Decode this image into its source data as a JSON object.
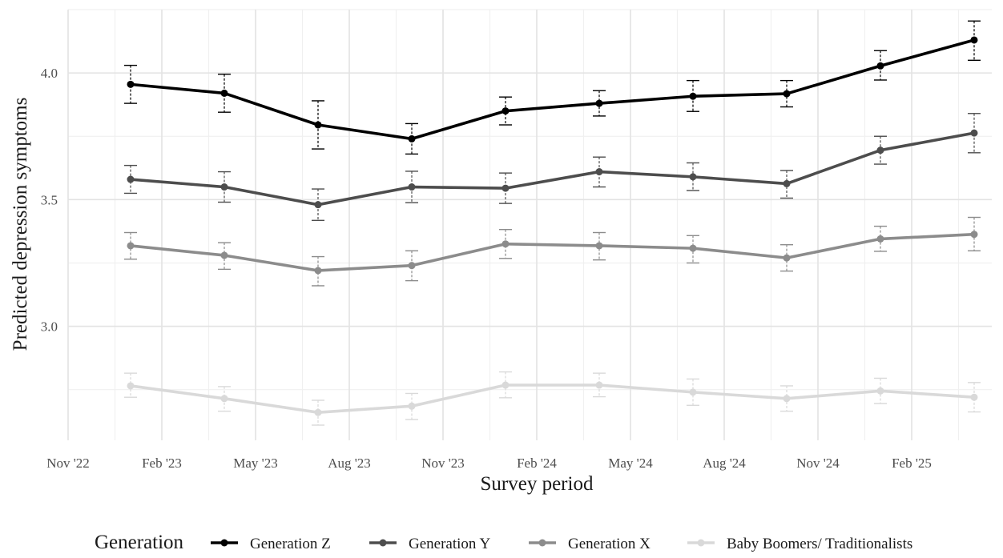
{
  "chart_data": {
    "type": "line",
    "title": "",
    "xlabel": "Survey period",
    "ylabel": "Predicted depression symptoms",
    "x": [
      "Jan '23",
      "Apr '23",
      "Jul '23",
      "Oct '23",
      "Jan '24",
      "Apr '24",
      "Jul '24",
      "Oct '24",
      "Jan '25",
      "Apr '25"
    ],
    "x_ticks": [
      "Nov '22",
      "Feb '23",
      "May '23",
      "Aug '23",
      "Nov '23",
      "Feb '24",
      "May '24",
      "Aug '24",
      "Nov '24",
      "Feb '25"
    ],
    "y_ticks": [
      "3.0",
      "3.5",
      "4.0"
    ],
    "ylim": [
      2.55,
      4.25
    ],
    "grid": true,
    "legend_position": "bottom",
    "legend_title": "Generation",
    "series": [
      {
        "name": "Generation Z",
        "color": "#000000",
        "values": [
          3.955,
          3.92,
          3.795,
          3.74,
          3.85,
          3.88,
          3.908,
          3.918,
          4.028,
          4.13
        ],
        "ci_low": [
          3.88,
          3.845,
          3.7,
          3.68,
          3.795,
          3.83,
          3.848,
          3.866,
          3.972,
          4.05
        ],
        "ci_high": [
          4.03,
          3.995,
          3.89,
          3.8,
          3.905,
          3.93,
          3.97,
          3.97,
          4.088,
          4.205
        ]
      },
      {
        "name": "Generation Y",
        "color": "#4d4d4d",
        "values": [
          3.58,
          3.55,
          3.48,
          3.55,
          3.545,
          3.61,
          3.59,
          3.563,
          3.695,
          3.763
        ],
        "ci_low": [
          3.525,
          3.49,
          3.418,
          3.488,
          3.485,
          3.55,
          3.536,
          3.506,
          3.64,
          3.685
        ],
        "ci_high": [
          3.635,
          3.61,
          3.542,
          3.612,
          3.605,
          3.668,
          3.645,
          3.615,
          3.75,
          3.84
        ]
      },
      {
        "name": "Generation X",
        "color": "#8c8c8c",
        "values": [
          3.318,
          3.28,
          3.22,
          3.24,
          3.325,
          3.318,
          3.308,
          3.27,
          3.345,
          3.363
        ],
        "ci_low": [
          3.265,
          3.225,
          3.16,
          3.18,
          3.268,
          3.262,
          3.25,
          3.218,
          3.296,
          3.298
        ],
        "ci_high": [
          3.37,
          3.33,
          3.275,
          3.298,
          3.382,
          3.37,
          3.358,
          3.322,
          3.395,
          3.43
        ]
      },
      {
        "name": "Baby Boomers/ Traditionalists",
        "color": "#d9d9d9",
        "values": [
          2.765,
          2.715,
          2.66,
          2.685,
          2.768,
          2.768,
          2.74,
          2.715,
          2.745,
          2.72
        ],
        "ci_low": [
          2.72,
          2.665,
          2.61,
          2.632,
          2.718,
          2.722,
          2.688,
          2.665,
          2.695,
          2.662
        ],
        "ci_high": [
          2.815,
          2.762,
          2.708,
          2.735,
          2.82,
          2.815,
          2.792,
          2.765,
          2.795,
          2.778
        ]
      }
    ]
  }
}
